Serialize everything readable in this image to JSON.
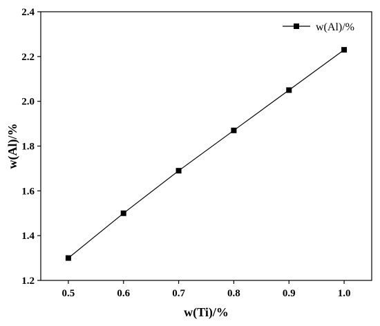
{
  "chart_data": {
    "type": "line",
    "title": "",
    "xlabel": "w(Ti)/%",
    "ylabel": "w(Al)/%",
    "xlim": [
      0.45,
      1.05
    ],
    "ylim": [
      1.2,
      2.4
    ],
    "xticks": [
      "0.5",
      "0.6",
      "0.7",
      "0.8",
      "0.9",
      "1.0"
    ],
    "yticks": [
      "1.2",
      "1.4",
      "1.6",
      "1.8",
      "2.0",
      "2.2",
      "2.4"
    ],
    "grid": false,
    "legend_position": "top-right",
    "series": [
      {
        "name": "w(Al)/%",
        "color": "#000000",
        "marker": "square",
        "x": [
          0.5,
          0.6,
          0.7,
          0.8,
          0.9,
          1.0
        ],
        "y": [
          1.3,
          1.5,
          1.69,
          1.87,
          2.05,
          2.23
        ]
      }
    ]
  }
}
